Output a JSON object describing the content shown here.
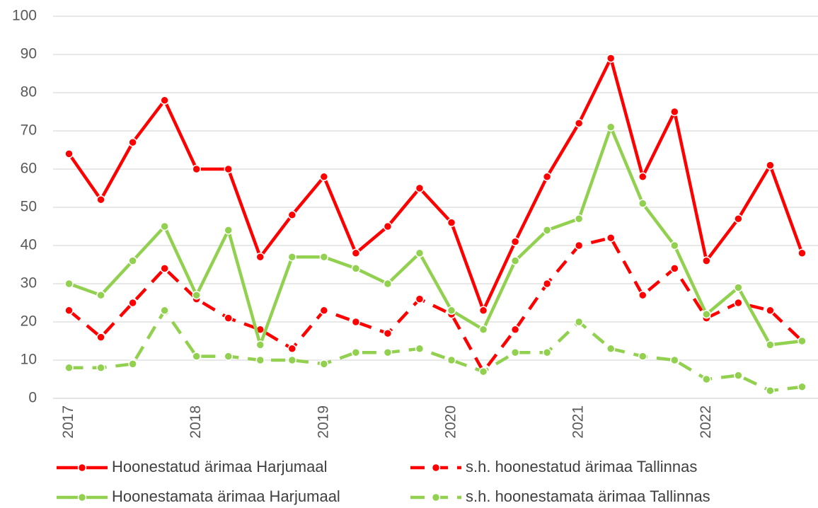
{
  "chart_data": {
    "type": "line",
    "categories": [
      "2017",
      null,
      null,
      null,
      "2018",
      null,
      null,
      null,
      "2019",
      null,
      null,
      null,
      "2020",
      null,
      null,
      null,
      "2021",
      null,
      null,
      null,
      "2022",
      null,
      null,
      null
    ],
    "series": [
      {
        "name": "Hoonestatud ärimaa Harjumaal",
        "color": "#ff0000",
        "dashed": false,
        "values": [
          64,
          52,
          67,
          78,
          60,
          60,
          37,
          48,
          58,
          38,
          45,
          55,
          46,
          23,
          41,
          58,
          72,
          89,
          58,
          75,
          36,
          47,
          61,
          38
        ]
      },
      {
        "name": "s.h. hoonestatud ärimaa Tallinnas",
        "color": "#ff0000",
        "dashed": true,
        "values": [
          23,
          16,
          25,
          34,
          26,
          21,
          18,
          13,
          23,
          20,
          17,
          26,
          22,
          7,
          18,
          30,
          40,
          42,
          27,
          34,
          21,
          25,
          23,
          15
        ]
      },
      {
        "name": "Hoonestamata ärimaa Harjumaal",
        "color": "#92d050",
        "dashed": false,
        "values": [
          30,
          27,
          36,
          45,
          27,
          44,
          14,
          37,
          37,
          34,
          30,
          38,
          23,
          18,
          36,
          44,
          47,
          71,
          51,
          40,
          22,
          29,
          14,
          15
        ]
      },
      {
        "name": "s.h. hoonestamata ärimaa Tallinnas",
        "color": "#92d050",
        "dashed": true,
        "values": [
          8,
          8,
          9,
          23,
          11,
          11,
          10,
          10,
          9,
          12,
          12,
          13,
          10,
          7,
          12,
          12,
          20,
          13,
          11,
          10,
          5,
          6,
          2,
          3
        ]
      }
    ],
    "ylim": [
      0,
      100
    ],
    "yticks": [
      0,
      10,
      20,
      30,
      40,
      50,
      60,
      70,
      80,
      90,
      100
    ],
    "grid": true,
    "legend": "bottom"
  }
}
